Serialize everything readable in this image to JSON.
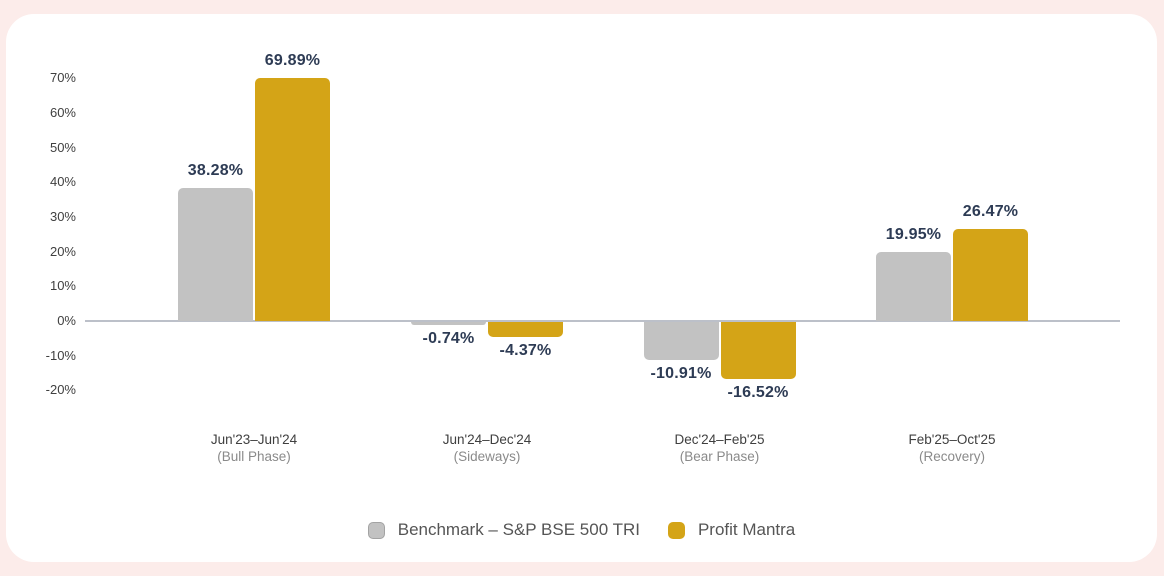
{
  "theme": {
    "page_background": "#fcecea",
    "card_background": "#ffffff",
    "data_label_color": "#2d3b54",
    "zero_line_color": "#bcc0c9"
  },
  "chart_data": {
    "type": "bar",
    "title": "",
    "categories": [
      "Jun'23–Jun'24",
      "Jun'24–Dec'24",
      "Dec'24–Feb'25",
      "Feb'25–Oct'25"
    ],
    "category_phases": [
      "(Bull Phase)",
      "(Sideways)",
      "(Bear Phase)",
      "(Recovery)"
    ],
    "series": [
      {
        "name": "Benchmark – S&P BSE 500 TRI",
        "color": "#c2c2c2",
        "values": [
          38.28,
          -0.74,
          -10.91,
          19.95
        ],
        "display_labels": [
          "38.28%",
          "-0.74%",
          "-10.91%",
          "19.95%"
        ]
      },
      {
        "name": "Profit Mantra",
        "color": "#d4a417",
        "values": [
          69.89,
          -4.37,
          -16.52,
          26.47
        ],
        "display_labels": [
          "69.89%",
          "-4.37%",
          "-16.52%",
          "26.47%"
        ]
      }
    ],
    "y_axis": {
      "tick_labels": [
        "70%",
        "60%",
        "50%",
        "40%",
        "30%",
        "20%",
        "10%",
        "0%",
        "-10%",
        "-20%"
      ],
      "tick_values": [
        70,
        60,
        50,
        40,
        30,
        20,
        10,
        0,
        -10,
        -20
      ],
      "ylim": [
        -20,
        70
      ],
      "grid": false
    },
    "legend_position": "bottom"
  }
}
